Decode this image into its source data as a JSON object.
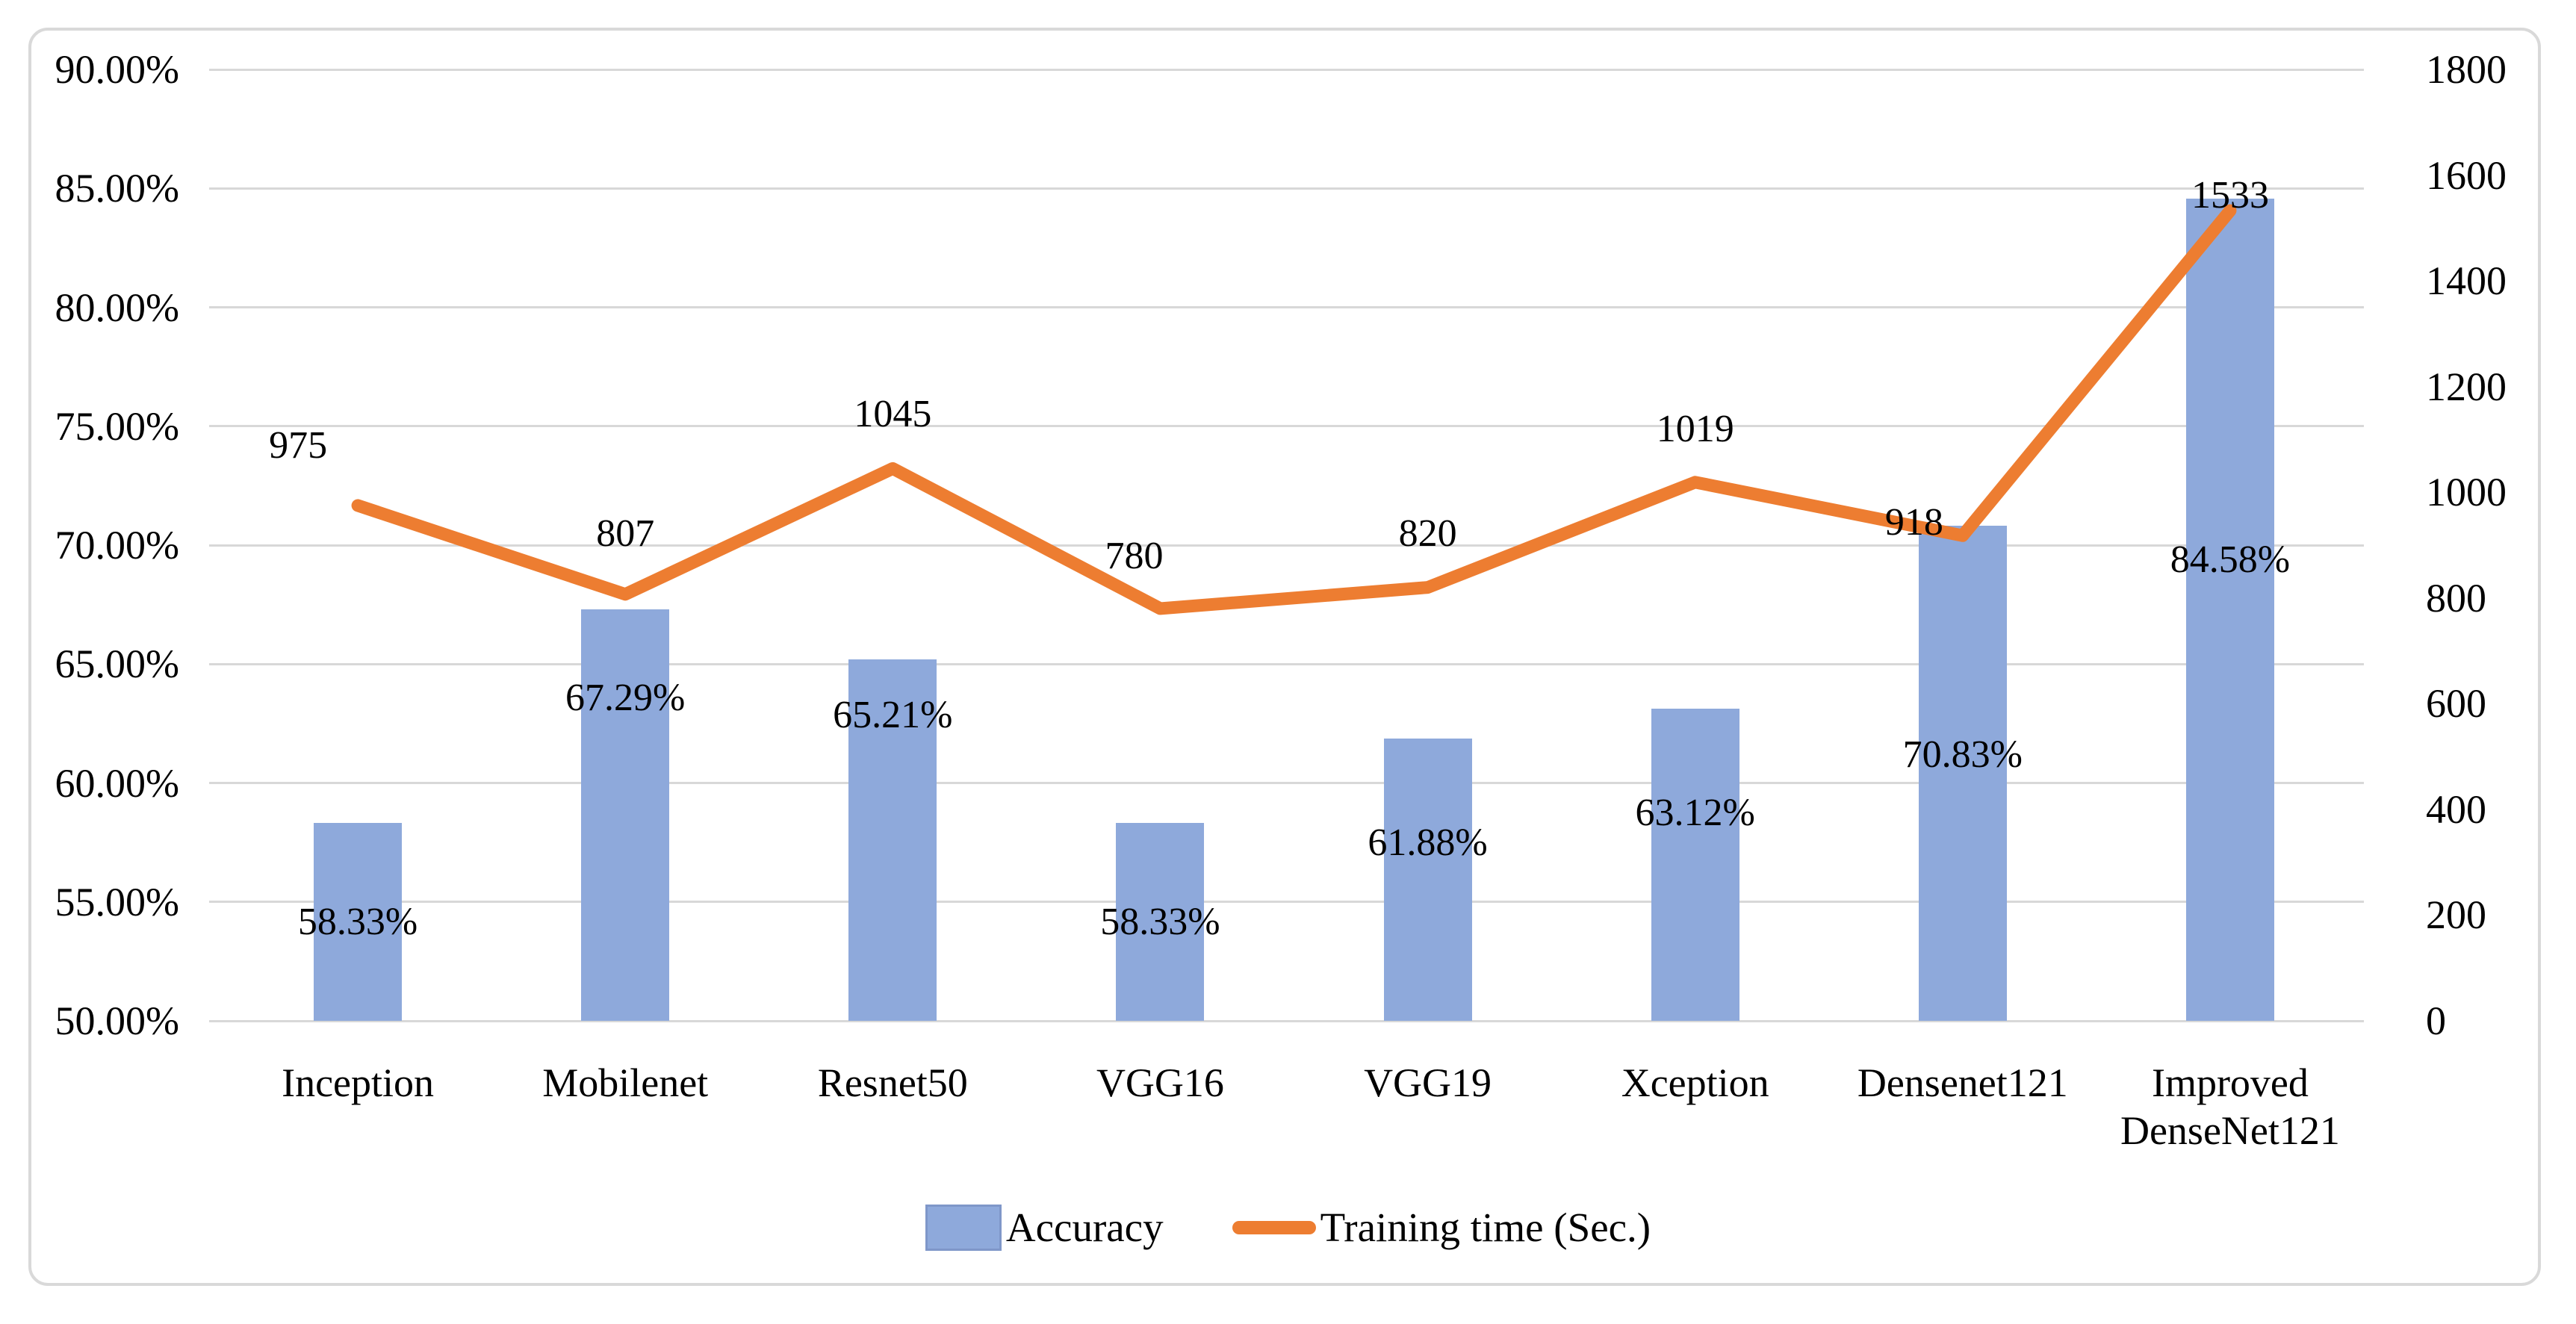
{
  "chart_data": {
    "type": "combo",
    "categories": [
      "Inception",
      "Mobilenet",
      "Resnet50",
      "VGG16",
      "VGG19",
      "Xception",
      "Densenet121",
      "Improved DenseNet121"
    ],
    "series": [
      {
        "name": "Accuracy",
        "type": "bar",
        "axis": "left",
        "values": [
          58.33,
          67.29,
          65.21,
          58.33,
          61.88,
          63.12,
          70.83,
          84.58
        ],
        "data_labels": [
          "58.33%",
          "67.29%",
          "65.21%",
          "58.33%",
          "61.88%",
          "63.12%",
          "70.83%",
          "84.58%"
        ]
      },
      {
        "name": "Training time (Sec.)",
        "type": "line",
        "axis": "right",
        "values": [
          975,
          807,
          1045,
          780,
          820,
          1019,
          918,
          1533
        ],
        "data_labels": [
          "975",
          "807",
          "1045",
          "780",
          "820",
          "1019",
          "918",
          "1533"
        ]
      }
    ],
    "left_axis": {
      "min": 50,
      "max": 90,
      "step": 5,
      "tick_labels": [
        "50.00%",
        "55.00%",
        "60.00%",
        "65.00%",
        "70.00%",
        "75.00%",
        "80.00%",
        "85.00%",
        "90.00%"
      ]
    },
    "right_axis": {
      "min": 0,
      "max": 1800,
      "step": 200,
      "tick_labels": [
        "0",
        "200",
        "400",
        "600",
        "800",
        "1000",
        "1200",
        "1400",
        "1600",
        "1800"
      ]
    },
    "grid": true,
    "legend_position": "bottom",
    "colors": {
      "bar": "#8EA9DB",
      "line": "#ED7D31",
      "gridline": "#D8D8D8",
      "chart_border": "#D9D9D9",
      "text": "#000000",
      "background": "#FFFFFF"
    }
  },
  "legend": {
    "items": [
      {
        "label": "Accuracy"
      },
      {
        "label": "Training time (Sec.)"
      }
    ]
  }
}
